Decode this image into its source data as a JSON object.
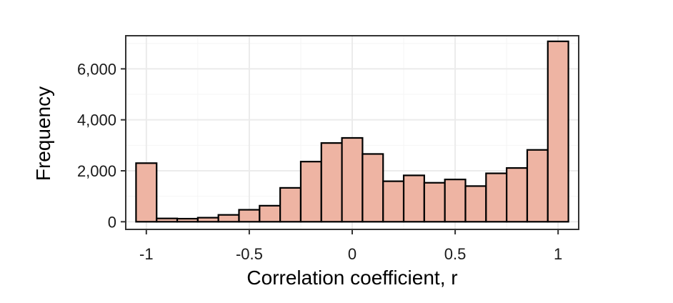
{
  "chart_data": {
    "type": "bar",
    "title": "",
    "xlabel": "Correlation coefficient, r",
    "ylabel": "Frequency",
    "xlim": [
      -1.1,
      1.1
    ],
    "ylim": [
      -300,
      7300
    ],
    "x_ticks": [
      -1,
      -0.5,
      0,
      0.5,
      1
    ],
    "x_tick_labels": [
      "-1",
      "-0.5",
      "0",
      "0.5",
      "1"
    ],
    "y_ticks": [
      0,
      2000,
      4000,
      6000
    ],
    "y_tick_labels": [
      "0",
      "2,000",
      "4,000",
      "6,000"
    ],
    "grid": true,
    "bin_width": 0.1,
    "bin_centers": [
      -1.0,
      -0.9,
      -0.8,
      -0.7,
      -0.6,
      -0.5,
      -0.4,
      -0.3,
      -0.2,
      -0.1,
      0.0,
      0.1,
      0.2,
      0.3,
      0.4,
      0.5,
      0.6,
      0.7,
      0.8,
      0.9,
      1.0
    ],
    "values": [
      2300,
      130,
      120,
      160,
      270,
      470,
      630,
      1330,
      2360,
      3090,
      3290,
      2660,
      1590,
      1820,
      1530,
      1660,
      1400,
      1900,
      2110,
      2820,
      7080
    ],
    "colors": {
      "bar_fill": "#eeb4a3",
      "bar_stroke": "#000000",
      "grid_major": "#ebebeb",
      "grid_minor": "#f5f5f5",
      "panel_border": "#333333"
    }
  }
}
